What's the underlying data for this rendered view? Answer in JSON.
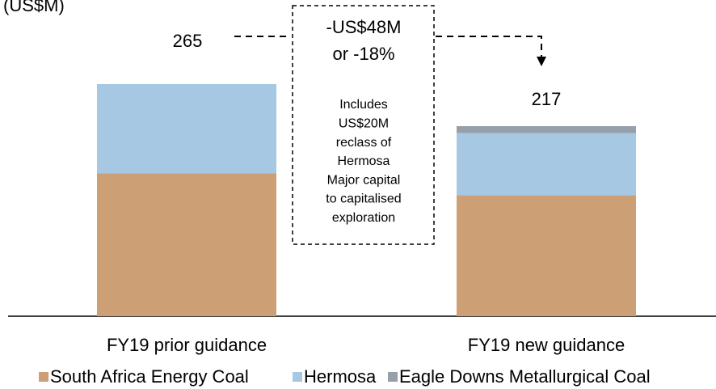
{
  "chart_data": {
    "type": "bar",
    "stacked": true,
    "y_label": "(US$M)",
    "categories": [
      "FY19 prior guidance",
      "FY19 new guidance"
    ],
    "series": [
      {
        "name": "South Africa Energy Coal",
        "color": "#cc9f74",
        "values": [
          163,
          138
        ]
      },
      {
        "name": "Hermosa",
        "color": "#a6c8e2",
        "values": [
          102,
          71
        ]
      },
      {
        "name": "Eagle Downs Metallurgical Coal",
        "color": "#96a0ab",
        "values": [
          0,
          8
        ]
      }
    ],
    "totals": [
      265,
      217
    ],
    "annotations": {
      "change": [
        "-US$48M",
        "or -18%"
      ],
      "note": [
        "Includes",
        "US$20M",
        "reclass of",
        "Hermosa",
        "Major capital",
        "to capitalised",
        "exploration"
      ]
    }
  }
}
